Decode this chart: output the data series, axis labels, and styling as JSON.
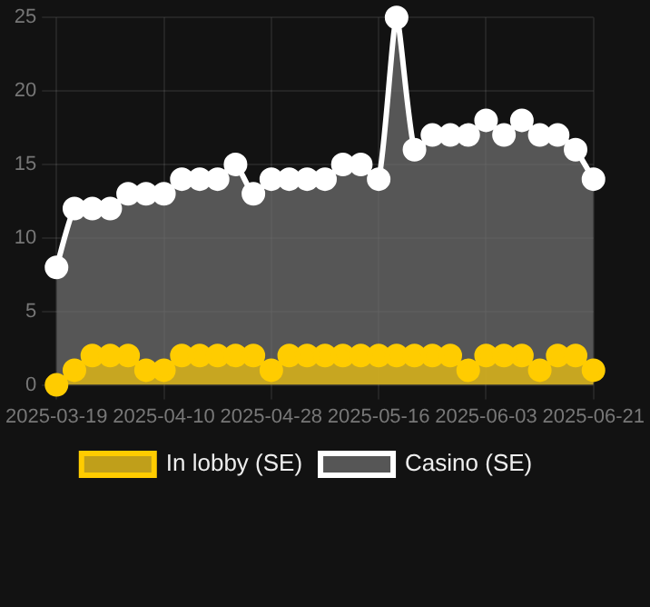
{
  "chart_data": {
    "type": "area",
    "categories": [
      "2025-03-19",
      null,
      null,
      null,
      null,
      null,
      "2025-04-10",
      null,
      null,
      null,
      null,
      null,
      "2025-04-28",
      null,
      null,
      null,
      null,
      null,
      "2025-05-16",
      null,
      null,
      null,
      null,
      null,
      "2025-06-03",
      null,
      null,
      null,
      null,
      null,
      "2025-06-21"
    ],
    "series": [
      {
        "name": "In lobby (SE)",
        "color": "#ffcc00",
        "values": [
          0,
          1,
          2,
          2,
          2,
          1,
          1,
          2,
          2,
          2,
          2,
          2,
          1,
          2,
          2,
          2,
          2,
          2,
          2,
          2,
          2,
          2,
          2,
          1,
          2,
          2,
          2,
          1,
          2,
          2,
          1
        ]
      },
      {
        "name": "Casino (SE)",
        "color": "#ffffff",
        "values": [
          8,
          12,
          12,
          12,
          13,
          13,
          13,
          14,
          14,
          14,
          15,
          13,
          14,
          14,
          14,
          14,
          15,
          15,
          14,
          25,
          16,
          17,
          17,
          17,
          18,
          17,
          18,
          17,
          17,
          16,
          14
        ]
      }
    ],
    "ylim": [
      0,
      25
    ],
    "yticks": [
      0,
      5,
      10,
      15,
      20,
      25
    ],
    "grid": true,
    "legend": "bottom",
    "marker": "circle"
  }
}
